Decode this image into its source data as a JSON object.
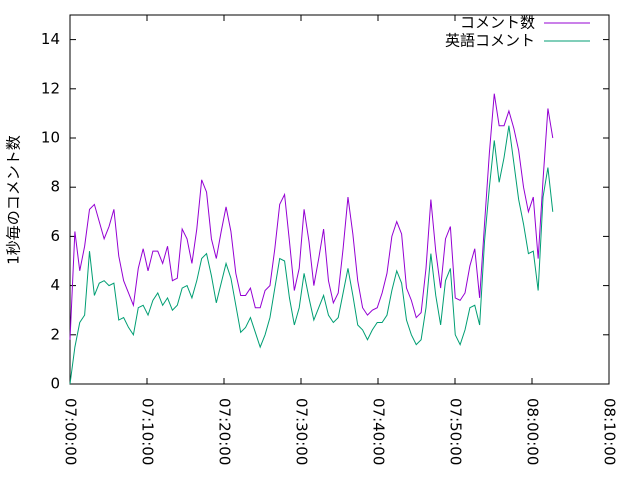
{
  "chart_data": {
    "type": "line",
    "y_label": "1秒毎のコメント数",
    "x": [
      "07:00:00",
      "07:00:38",
      "07:01:16",
      "07:01:54",
      "07:02:32",
      "07:03:10",
      "07:03:48",
      "07:04:26",
      "07:05:04",
      "07:05:42",
      "07:06:20",
      "07:06:58",
      "07:07:36",
      "07:08:14",
      "07:08:52",
      "07:09:30",
      "07:10:08",
      "07:10:46",
      "07:11:24",
      "07:12:02",
      "07:12:40",
      "07:13:18",
      "07:13:56",
      "07:14:34",
      "07:15:12",
      "07:15:50",
      "07:16:28",
      "07:17:06",
      "07:17:44",
      "07:18:22",
      "07:19:00",
      "07:19:38",
      "07:20:16",
      "07:20:54",
      "07:21:32",
      "07:22:10",
      "07:22:48",
      "07:23:26",
      "07:24:04",
      "07:24:42",
      "07:25:20",
      "07:25:58",
      "07:26:36",
      "07:27:14",
      "07:27:52",
      "07:28:30",
      "07:29:08",
      "07:29:46",
      "07:30:24",
      "07:31:02",
      "07:31:40",
      "07:32:18",
      "07:32:56",
      "07:33:34",
      "07:34:12",
      "07:34:50",
      "07:35:28",
      "07:36:06",
      "07:36:44",
      "07:37:22",
      "07:38:00",
      "07:38:38",
      "07:39:16",
      "07:39:54",
      "07:40:32",
      "07:41:10",
      "07:41:48",
      "07:42:26",
      "07:43:04",
      "07:43:42",
      "07:44:20",
      "07:44:58",
      "07:45:36",
      "07:46:14",
      "07:46:52",
      "07:47:30",
      "07:48:08",
      "07:48:46",
      "07:49:24",
      "07:50:02",
      "07:50:40",
      "07:51:18",
      "07:51:56",
      "07:52:34",
      "07:53:12",
      "07:53:50",
      "07:54:28",
      "07:55:06",
      "07:55:44",
      "07:56:22",
      "07:57:00",
      "07:57:38",
      "07:58:16",
      "07:58:54",
      "07:59:32",
      "08:00:10",
      "08:00:48",
      "08:01:26",
      "08:02:04",
      "08:02:42"
    ],
    "series": [
      {
        "name": "コメント数",
        "color": "#9400d3",
        "values": [
          1.8,
          6.2,
          4.6,
          5.6,
          7.1,
          7.3,
          6.6,
          5.9,
          6.4,
          7.1,
          5.2,
          4.2,
          3.7,
          3.2,
          4.7,
          5.5,
          4.6,
          5.4,
          5.4,
          4.9,
          5.6,
          4.2,
          4.3,
          6.3,
          5.9,
          4.9,
          6.3,
          8.3,
          7.8,
          5.9,
          5.1,
          6.2,
          7.2,
          6.2,
          4.5,
          3.6,
          3.6,
          3.9,
          3.1,
          3.1,
          3.8,
          4.0,
          5.5,
          7.3,
          7.7,
          5.8,
          3.8,
          4.7,
          7.1,
          5.8,
          4.0,
          5.1,
          6.3,
          4.2,
          3.3,
          3.7,
          5.5,
          7.6,
          6.1,
          4.2,
          3.1,
          2.8,
          3.0,
          3.1,
          3.7,
          4.5,
          6.0,
          6.6,
          6.1,
          3.9,
          3.4,
          2.7,
          2.9,
          4.7,
          7.5,
          5.4,
          3.9,
          5.9,
          6.4,
          3.5,
          3.4,
          3.7,
          4.8,
          5.5,
          3.5,
          6.5,
          9.4,
          11.8,
          10.5,
          10.5,
          11.1,
          10.4,
          9.5,
          8.0,
          7.0,
          7.6,
          5.1,
          8.3,
          11.2,
          10.0
        ]
      },
      {
        "name": "英語コメント",
        "color": "#009e73",
        "values": [
          0.0,
          1.5,
          2.5,
          2.8,
          5.4,
          3.6,
          4.1,
          4.2,
          4.0,
          4.1,
          2.6,
          2.7,
          2.3,
          2.0,
          3.1,
          3.2,
          2.8,
          3.4,
          3.7,
          3.2,
          3.5,
          3.0,
          3.2,
          3.9,
          4.0,
          3.5,
          4.2,
          5.1,
          5.3,
          4.4,
          3.3,
          4.1,
          4.9,
          4.3,
          3.2,
          2.1,
          2.3,
          2.7,
          2.1,
          1.5,
          2.0,
          2.7,
          3.9,
          5.1,
          5.0,
          3.5,
          2.4,
          3.1,
          4.5,
          3.5,
          2.6,
          3.1,
          3.6,
          2.8,
          2.5,
          2.7,
          3.7,
          4.7,
          3.6,
          2.4,
          2.2,
          1.8,
          2.2,
          2.5,
          2.5,
          2.8,
          3.8,
          4.6,
          4.1,
          2.6,
          2.0,
          1.6,
          1.8,
          3.1,
          5.3,
          3.6,
          2.4,
          4.2,
          4.7,
          2.0,
          1.6,
          2.2,
          3.1,
          3.2,
          2.4,
          5.8,
          8.0,
          9.9,
          8.2,
          9.2,
          10.5,
          9.0,
          7.5,
          6.5,
          5.3,
          5.4,
          3.8,
          7.6,
          8.8,
          7.0
        ]
      }
    ],
    "xlim": [
      "07:00:00",
      "08:10:00"
    ],
    "xticks": [
      "07:00:00",
      "07:10:00",
      "07:20:00",
      "07:30:00",
      "07:40:00",
      "07:50:00",
      "08:00:00",
      "08:10:00"
    ],
    "ylim": [
      0,
      15
    ],
    "yticks": [
      0,
      2,
      4,
      6,
      8,
      10,
      12,
      14
    ],
    "legend": "top-right"
  }
}
